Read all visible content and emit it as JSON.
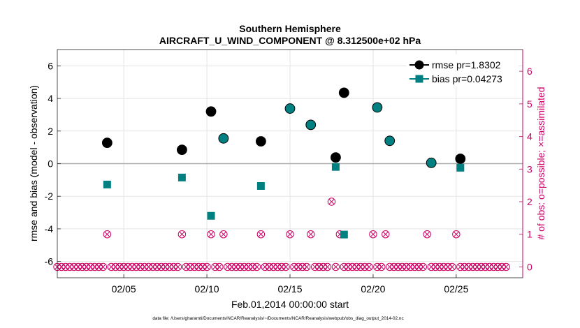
{
  "chart_data": {
    "type": "scatter",
    "title": "Southern Hemisphere",
    "subtitle": "AIRCRAFT_U_WIND_COMPONENT @ 8.312500e+02 hPa",
    "xlabel": "Feb.01,2014 00:00:00 start",
    "ylabel": "rmse and bias (model - observation)",
    "y2label": "# of obs: o=possible; ×=assimilated",
    "footnote": "data file: /Users/gharamti/Documents/NCAR/Reanalysis/~/Documents/NCAR/Reanalysis/webpub/obs_diag_output_2014-02.nc",
    "xlim": [
      1,
      29
    ],
    "ylim": [
      -7,
      7
    ],
    "y2lim": [
      -0.3333,
      6.6667
    ],
    "x_ticks": [
      {
        "value": 5,
        "label": "02/05"
      },
      {
        "value": 10,
        "label": "02/10"
      },
      {
        "value": 15,
        "label": "02/15"
      },
      {
        "value": 20,
        "label": "02/20"
      },
      {
        "value": 25,
        "label": "02/25"
      }
    ],
    "y_ticks": [
      {
        "value": -6,
        "label": "-6"
      },
      {
        "value": -4,
        "label": "-4"
      },
      {
        "value": -2,
        "label": "-2"
      },
      {
        "value": 0,
        "label": "0"
      },
      {
        "value": 2,
        "label": "2"
      },
      {
        "value": 4,
        "label": "4"
      },
      {
        "value": 6,
        "label": "6"
      }
    ],
    "y2_ticks": [
      {
        "value": 0,
        "label": "0"
      },
      {
        "value": 1,
        "label": "1"
      },
      {
        "value": 2,
        "label": "2"
      },
      {
        "value": 3,
        "label": "3"
      },
      {
        "value": 4,
        "label": "4"
      },
      {
        "value": 5,
        "label": "5"
      },
      {
        "value": 6,
        "label": "6"
      }
    ],
    "grid": true,
    "legend": "top-right",
    "series": [
      {
        "name": "rmse pr=1.8302",
        "color": "#000000",
        "marker": "circle",
        "points": [
          {
            "x": 4.0,
            "y": 1.28
          },
          {
            "x": 8.5,
            "y": 0.85
          },
          {
            "x": 10.25,
            "y": 3.2
          },
          {
            "x": 11.0,
            "y": 1.55
          },
          {
            "x": 13.25,
            "y": 1.37
          },
          {
            "x": 15.0,
            "y": 3.38
          },
          {
            "x": 16.25,
            "y": 2.38
          },
          {
            "x": 17.75,
            "y": 0.38
          },
          {
            "x": 18.25,
            "y": 4.35
          },
          {
            "x": 20.25,
            "y": 3.45
          },
          {
            "x": 21.0,
            "y": 1.4
          },
          {
            "x": 23.5,
            "y": 0.05
          },
          {
            "x": 25.25,
            "y": 0.3
          }
        ]
      },
      {
        "name": "bias pr=0.04273",
        "color": "#008080",
        "marker": "square",
        "points": [
          {
            "x": 4.0,
            "y": -1.28
          },
          {
            "x": 8.5,
            "y": -0.85
          },
          {
            "x": 10.25,
            "y": -3.2
          },
          {
            "x": 11.0,
            "y": 1.55
          },
          {
            "x": 13.25,
            "y": -1.37
          },
          {
            "x": 15.0,
            "y": 3.38
          },
          {
            "x": 16.25,
            "y": 2.38
          },
          {
            "x": 17.75,
            "y": -0.2
          },
          {
            "x": 18.25,
            "y": -4.35
          },
          {
            "x": 20.25,
            "y": 3.45
          },
          {
            "x": 21.0,
            "y": 1.4
          },
          {
            "x": 23.5,
            "y": 0.05
          },
          {
            "x": 25.25,
            "y": -0.25
          }
        ]
      }
    ],
    "obs_counts": {
      "color": "#cc0066",
      "axis": "right",
      "possible": {
        "x_start": 1.0,
        "x_step": 0.25,
        "values": [
          0,
          0,
          0,
          0,
          0,
          0,
          0,
          0,
          0,
          0,
          0,
          0,
          1,
          0,
          0,
          0,
          0,
          0,
          0,
          0,
          0,
          0,
          0,
          0,
          0,
          0,
          0,
          0,
          0,
          0,
          1,
          0,
          0,
          0,
          0,
          0,
          0,
          1,
          0,
          0,
          1,
          0,
          0,
          0,
          0,
          0,
          0,
          0,
          0,
          1,
          0,
          0,
          0,
          0,
          0,
          0,
          1,
          0,
          0,
          0,
          0,
          1,
          0,
          0,
          0,
          0,
          2,
          0,
          1,
          0,
          0,
          0,
          0,
          0,
          0,
          0,
          1,
          0,
          0,
          1,
          0,
          0,
          0,
          0,
          0,
          0,
          0,
          0,
          0,
          1,
          0,
          0,
          0,
          0,
          0,
          0,
          1,
          0,
          0,
          0,
          0,
          0,
          0,
          0,
          0,
          0,
          0,
          0,
          0
        ]
      },
      "assimilated": {
        "x_start": 1.0,
        "x_step": 0.25,
        "values": [
          0,
          0,
          0,
          0,
          0,
          0,
          0,
          0,
          0,
          0,
          0,
          0,
          1,
          0,
          0,
          0,
          0,
          0,
          0,
          0,
          0,
          0,
          0,
          0,
          0,
          0,
          0,
          0,
          0,
          0,
          1,
          0,
          0,
          0,
          0,
          0,
          0,
          1,
          0,
          0,
          1,
          0,
          0,
          0,
          0,
          0,
          0,
          0,
          0,
          1,
          0,
          0,
          0,
          0,
          0,
          0,
          1,
          0,
          0,
          0,
          0,
          1,
          0,
          0,
          0,
          0,
          2,
          0,
          1,
          0,
          0,
          0,
          0,
          0,
          0,
          0,
          1,
          0,
          0,
          1,
          0,
          0,
          0,
          0,
          0,
          0,
          0,
          0,
          0,
          1,
          0,
          0,
          0,
          0,
          0,
          0,
          1,
          0,
          0,
          0,
          0,
          0,
          0,
          0,
          0,
          0,
          0,
          0,
          0
        ]
      }
    }
  }
}
